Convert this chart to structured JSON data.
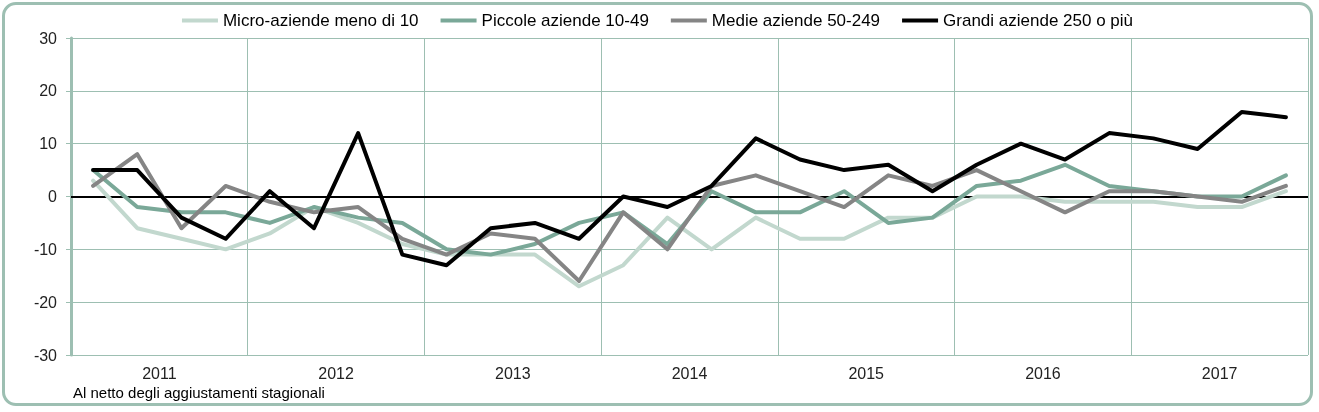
{
  "chart_data": {
    "type": "line",
    "x": [
      2011.125,
      2011.375,
      2011.625,
      2011.875,
      2012.125,
      2012.375,
      2012.625,
      2012.875,
      2013.125,
      2013.375,
      2013.625,
      2013.875,
      2014.125,
      2014.375,
      2014.625,
      2014.875,
      2015.125,
      2015.375,
      2015.625,
      2015.875,
      2016.125,
      2016.375,
      2016.625,
      2016.875,
      2017.125,
      2017.375,
      2017.625,
      2017.875
    ],
    "series": [
      {
        "name": "Micro-aziende meno di 10",
        "color": "#c2d8ce",
        "values": [
          3,
          -6,
          -8,
          -10,
          -7,
          -2,
          -5,
          -9,
          -11,
          -11,
          -11,
          -17,
          -13,
          -4,
          -10,
          -4,
          -8,
          -8,
          -4,
          -4,
          0,
          0,
          -1,
          -1,
          -1,
          -2,
          -2,
          1
        ]
      },
      {
        "name": "Piccole aziende 10-49",
        "color": "#7aa898",
        "values": [
          5,
          -2,
          -3,
          -3,
          -5,
          -2,
          -4,
          -5,
          -10,
          -11,
          -9,
          -5,
          -3,
          -9,
          1,
          -3,
          -3,
          1,
          -5,
          -4,
          2,
          3,
          6,
          2,
          1,
          0,
          0,
          4
        ]
      },
      {
        "name": "Medie aziende 50-249",
        "color": "#858585",
        "values": [
          2,
          8,
          -6,
          2,
          -1,
          -3,
          -2,
          -8,
          -11,
          -7,
          -8,
          -16,
          -3,
          -10,
          2,
          4,
          1,
          -2,
          4,
          2,
          5,
          1,
          -3,
          1,
          1,
          0,
          -1,
          2
        ]
      },
      {
        "name": "Grandi aziende 250 o più",
        "color": "#000000",
        "values": [
          5,
          5,
          -4,
          -8,
          1,
          -6,
          12,
          -11,
          -13,
          -6,
          -5,
          -8,
          0,
          -2,
          2,
          11,
          7,
          5,
          6,
          1,
          6,
          10,
          7,
          12,
          11,
          9,
          16,
          15
        ]
      }
    ],
    "xlim": [
      2011,
      2018
    ],
    "xticks": [
      {
        "value": 2011.5,
        "label": "2011"
      },
      {
        "value": 2012,
        "label": null
      },
      {
        "value": 2012.5,
        "label": "2012"
      },
      {
        "value": 2013,
        "label": null
      },
      {
        "value": 2013.5,
        "label": "2013"
      },
      {
        "value": 2014,
        "label": null
      },
      {
        "value": 2014.5,
        "label": "2014"
      },
      {
        "value": 2015,
        "label": null
      },
      {
        "value": 2015.5,
        "label": "2015"
      },
      {
        "value": 2016,
        "label": null
      },
      {
        "value": 2016.5,
        "label": "2016"
      },
      {
        "value": 2017,
        "label": null
      },
      {
        "value": 2017.5,
        "label": "2017"
      },
      {
        "value": 2018,
        "label": null
      }
    ],
    "ylim": [
      -30,
      30
    ],
    "yticks": [
      -30,
      -20,
      -10,
      0,
      10,
      20,
      30
    ],
    "ref_lines": [
      {
        "axis": "y",
        "value": 0,
        "color": "#000000"
      }
    ],
    "annotations": [
      "Al netto degli aggiustamenti stagionali"
    ],
    "grid": true,
    "legend": "top",
    "marker": "none",
    "line_style": "solid"
  }
}
